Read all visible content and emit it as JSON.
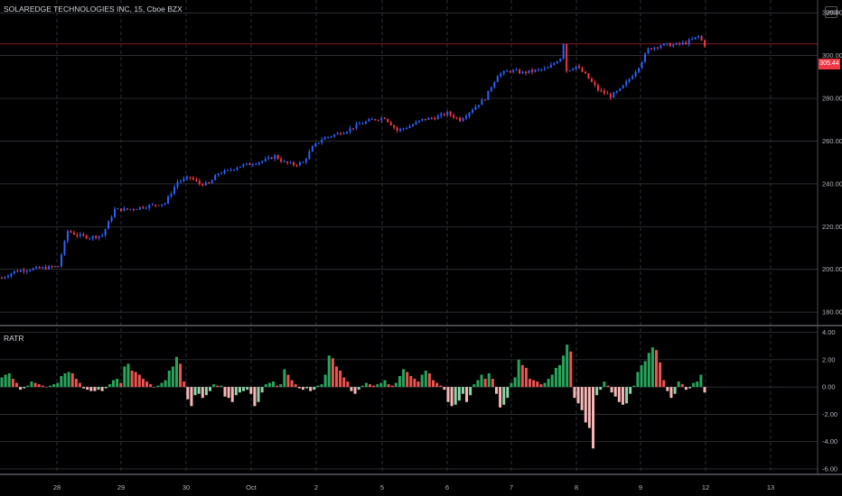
{
  "header": {
    "title": "SOLAREDGE TECHNOLOGIES INC, 15, Cboe BZX",
    "currency_label": "USD"
  },
  "price_tag": {
    "value": "305.44",
    "color": "#f23645"
  },
  "colors": {
    "up": "#2962ff",
    "down": "#f23645",
    "osc_up_strong": "#26a65b",
    "osc_up_weak": "#ef5350",
    "osc_down_strong": "#f8b6b6",
    "osc_down_weak": "#8fd3a8",
    "grid": "#2a2e39",
    "background": "#000000"
  },
  "chart_data": [
    {
      "type": "candlestick",
      "title": "SOLAREDGE TECHNOLOGIES INC, 15, Cboe BZX",
      "y_ticks": [
        "320.00",
        "300.00",
        "280.00",
        "260.00",
        "240.00",
        "220.00",
        "200.00",
        "180.00"
      ],
      "ylim": [
        175,
        326
      ],
      "x_ticks": [
        "28",
        "29",
        "30",
        "Oct",
        "2",
        "5",
        "6",
        "7",
        "8",
        "9",
        "12",
        "13"
      ],
      "last_price": 305.44,
      "grid": true,
      "close_path": [
        [
          0,
          196
        ],
        [
          4,
          199
        ],
        [
          8,
          200
        ],
        [
          16,
          201
        ],
        [
          18,
          201.5
        ],
        [
          21,
          218
        ],
        [
          24,
          216
        ],
        [
          28,
          215
        ],
        [
          32,
          216
        ],
        [
          36,
          228
        ],
        [
          40,
          228
        ],
        [
          44,
          229
        ],
        [
          48,
          230
        ],
        [
          52,
          231
        ],
        [
          56,
          241
        ],
        [
          60,
          243
        ],
        [
          63,
          240
        ],
        [
          66,
          240
        ],
        [
          69,
          245
        ],
        [
          72,
          246
        ],
        [
          75,
          248
        ],
        [
          78,
          249
        ],
        [
          81,
          250
        ],
        [
          84,
          251
        ],
        [
          87,
          253
        ],
        [
          90,
          250
        ],
        [
          93,
          249
        ],
        [
          96,
          250
        ],
        [
          99,
          257
        ],
        [
          102,
          261
        ],
        [
          106,
          263
        ],
        [
          110,
          265
        ],
        [
          114,
          268
        ],
        [
          118,
          270
        ],
        [
          122,
          271
        ],
        [
          126,
          265
        ],
        [
          130,
          267
        ],
        [
          134,
          270
        ],
        [
          138,
          271
        ],
        [
          142,
          273
        ],
        [
          146,
          270
        ],
        [
          150,
          275
        ],
        [
          154,
          280
        ],
        [
          158,
          291
        ],
        [
          162,
          293
        ],
        [
          166,
          292
        ],
        [
          170,
          293
        ],
        [
          174,
          294
        ],
        [
          178,
          299
        ],
        [
          179,
          306
        ],
        [
          180,
          293
        ],
        [
          183,
          295
        ],
        [
          186,
          291
        ],
        [
          190,
          284
        ],
        [
          194,
          281
        ],
        [
          197,
          284
        ],
        [
          200,
          289
        ],
        [
          203,
          295
        ],
        [
          206,
          303
        ],
        [
          210,
          305
        ],
        [
          214,
          305
        ],
        [
          218,
          306
        ],
        [
          222,
          309
        ],
        [
          224,
          305
        ]
      ]
    },
    {
      "type": "bar",
      "title": "RATR",
      "y_ticks": [
        "4.00",
        "2.00",
        "0.00",
        "-2.00",
        "-4.00",
        "-6.00"
      ],
      "ylim": [
        -6.2,
        4.3
      ],
      "values": [
        0.7,
        0.9,
        1.0,
        0.6,
        0.3,
        -0.2,
        -0.1,
        0.1,
        0.4,
        0.3,
        0.2,
        0.1,
        0.0,
        0.1,
        0.2,
        0.3,
        0.8,
        1.0,
        1.1,
        1.0,
        0.6,
        0.3,
        -0.1,
        -0.2,
        -0.3,
        -0.3,
        -0.2,
        -0.3,
        -0.1,
        0.2,
        0.5,
        0.6,
        0.3,
        1.5,
        1.7,
        1.2,
        1.1,
        0.9,
        0.6,
        0.4,
        0.2,
        0.0,
        0.1,
        0.3,
        0.5,
        1.2,
        1.5,
        2.2,
        1.7,
        0.4,
        -0.9,
        -1.4,
        -0.6,
        -0.5,
        -0.8,
        -0.6,
        -0.3,
        0.2,
        0.1,
        0.1,
        -0.7,
        -0.8,
        -1.1,
        -0.6,
        -0.4,
        -0.3,
        -0.2,
        -0.5,
        -1.4,
        -1.1,
        -0.4,
        0.2,
        0.3,
        0.4,
        0.1,
        0.2,
        1.3,
        0.9,
        0.5,
        0.2,
        -0.1,
        -0.2,
        -0.1,
        -0.3,
        -0.2,
        0.1,
        0.2,
        0.9,
        2.3,
        2.1,
        1.5,
        1.2,
        0.7,
        0.4,
        -0.3,
        -0.5,
        -0.2,
        0.1,
        0.3,
        0.2,
        0.1,
        0.2,
        0.3,
        0.5,
        0.2,
        0.1,
        0.3,
        0.8,
        1.3,
        1.1,
        0.8,
        0.6,
        0.4,
        0.9,
        1.2,
        1.0,
        0.5,
        0.3,
        0.1,
        -0.2,
        -1.1,
        -1.4,
        -1.3,
        -1.0,
        -0.5,
        -1.1,
        -0.6,
        0.2,
        0.5,
        0.9,
        0.6,
        1.0,
        0.6,
        -0.5,
        -1.5,
        -1.3,
        -0.8,
        0.3,
        0.7,
        2.0,
        1.6,
        1.4,
        0.6,
        0.5,
        0.4,
        0.2,
        0.3,
        0.6,
        0.9,
        1.4,
        1.6,
        2.3,
        3.1,
        2.6,
        -0.8,
        -1.2,
        -1.7,
        -2.6,
        -3.0,
        -4.5,
        -0.6,
        -0.2,
        0.4,
        0.1,
        -0.4,
        -0.7,
        -1.1,
        -1.3,
        -1.2,
        -0.5,
        0.1,
        1.1,
        1.6,
        1.9,
        2.5,
        2.9,
        2.7,
        1.8,
        0.5,
        -0.3,
        -0.8,
        -0.5,
        0.4,
        0.2,
        -0.2,
        -0.1,
        0.3,
        0.4,
        0.9,
        -0.4
      ]
    }
  ]
}
